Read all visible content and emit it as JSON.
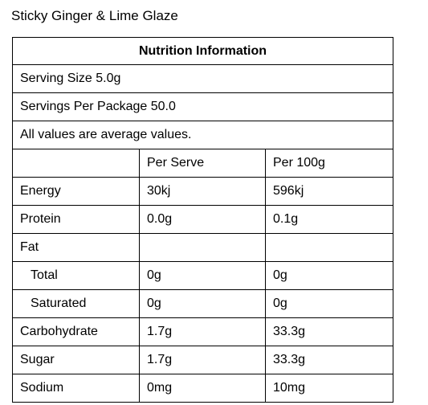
{
  "product": {
    "title": "Sticky Ginger & Lime Glaze"
  },
  "panel": {
    "heading": "Nutrition Information",
    "serving_size": "Serving Size 5.0g",
    "servings_per_package": "Servings Per Package 50.0",
    "note": "All values are average values.",
    "columns": [
      "",
      "Per Serve",
      "Per 100g"
    ],
    "rows": [
      {
        "label": "Energy",
        "per_serve": "30kj",
        "per_100g": "596kj"
      },
      {
        "label": "Protein",
        "per_serve": "0.0g",
        "per_100g": "0.1g"
      },
      {
        "label": "Fat",
        "per_serve": "",
        "per_100g": ""
      },
      {
        "label": "Total",
        "per_serve": "0g",
        "per_100g": "0g"
      },
      {
        "label": "Saturated",
        "per_serve": "0g",
        "per_100g": "0g"
      },
      {
        "label": "Carbohydrate",
        "per_serve": "1.7g",
        "per_100g": "33.3g"
      },
      {
        "label": "Sugar",
        "per_serve": "1.7g",
        "per_100g": "33.3g"
      },
      {
        "label": "Sodium",
        "per_serve": "0mg",
        "per_100g": "10mg"
      }
    ]
  }
}
